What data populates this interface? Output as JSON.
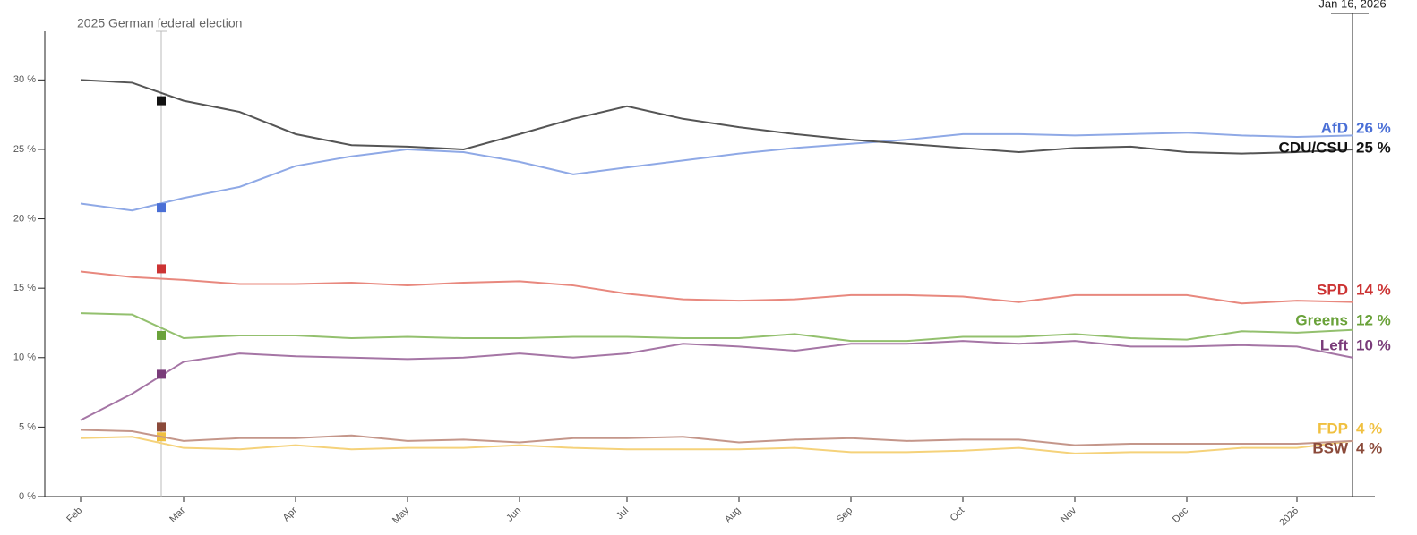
{
  "chart_data": {
    "type": "line",
    "categories": [
      "Feb",
      null,
      "Mar",
      null,
      "Apr",
      null,
      "May",
      null,
      "Jun",
      null,
      "Jul",
      null,
      "Aug",
      null,
      "Sep",
      null,
      "Oct",
      null,
      "Nov",
      null,
      "Dec",
      null,
      "2026",
      null
    ],
    "ylim": [
      0,
      33.5
    ],
    "yticks": [
      {
        "value": 0,
        "label": "0 %"
      },
      {
        "value": 5,
        "label": "5 %"
      },
      {
        "value": 10,
        "label": "10 %"
      },
      {
        "value": 15,
        "label": "15 %"
      },
      {
        "value": 20,
        "label": "20 %"
      },
      {
        "value": 25,
        "label": "25 %"
      },
      {
        "value": 30,
        "label": "30 %"
      }
    ],
    "election_label": "2025 German federal election",
    "current_date": "Jan 16, 2026",
    "series": [
      {
        "name": "AfD",
        "color": "#8fa9e6",
        "label_color": "#4a6fd6",
        "election_result": 20.8,
        "values": [
          21.1,
          20.6,
          21.5,
          22.3,
          23.8,
          24.5,
          25.0,
          24.8,
          24.1,
          23.2,
          23.7,
          24.2,
          24.7,
          25.1,
          25.4,
          25.7,
          26.1,
          26.1,
          26.0,
          26.1,
          26.2,
          26.0,
          25.9,
          26
        ],
        "value_labels": [
          null,
          null,
          null,
          null,
          null,
          null,
          null,
          null,
          null,
          null,
          null,
          null,
          null,
          null,
          null,
          null,
          null,
          null,
          null,
          null,
          null,
          null,
          null,
          "26 %"
        ]
      },
      {
        "name": "CDU/CSU",
        "color": "#555555",
        "label_color": "#111111",
        "election_result": 28.5,
        "values": [
          30.0,
          29.8,
          28.5,
          27.7,
          26.1,
          25.3,
          25.2,
          25.0,
          26.1,
          27.2,
          28.1,
          27.2,
          26.6,
          26.1,
          25.7,
          25.4,
          25.1,
          24.8,
          25.1,
          25.2,
          24.8,
          24.7,
          24.8,
          25
        ],
        "value_labels": [
          null,
          null,
          null,
          null,
          null,
          null,
          null,
          null,
          null,
          null,
          null,
          null,
          null,
          null,
          null,
          null,
          null,
          null,
          null,
          null,
          null,
          null,
          null,
          "25 %"
        ]
      },
      {
        "name": "SPD",
        "color": "#e8887e",
        "label_color": "#cc3333",
        "election_result": 16.4,
        "values": [
          16.2,
          15.8,
          15.6,
          15.3,
          15.3,
          15.4,
          15.2,
          15.4,
          15.5,
          15.2,
          14.6,
          14.2,
          14.1,
          14.2,
          14.5,
          14.5,
          14.4,
          14.0,
          14.5,
          14.5,
          14.5,
          13.9,
          14.1,
          14
        ],
        "value_labels": [
          null,
          null,
          null,
          null,
          null,
          null,
          null,
          null,
          null,
          null,
          null,
          null,
          null,
          null,
          null,
          null,
          null,
          null,
          null,
          null,
          null,
          null,
          null,
          "14 %"
        ]
      },
      {
        "name": "Greens",
        "color": "#93c06e",
        "label_color": "#6aa23a",
        "election_result": 11.6,
        "values": [
          13.2,
          13.1,
          11.4,
          11.6,
          11.6,
          11.4,
          11.5,
          11.4,
          11.4,
          11.5,
          11.5,
          11.4,
          11.4,
          11.7,
          11.2,
          11.2,
          11.5,
          11.5,
          11.7,
          11.4,
          11.3,
          11.9,
          11.8,
          12
        ],
        "value_labels": [
          null,
          null,
          null,
          null,
          null,
          null,
          null,
          null,
          null,
          null,
          null,
          null,
          null,
          null,
          null,
          null,
          null,
          null,
          null,
          null,
          null,
          null,
          null,
          "12 %"
        ]
      },
      {
        "name": "Left",
        "color": "#a575a5",
        "label_color": "#7a3c7a",
        "election_result": 8.8,
        "values": [
          5.5,
          7.4,
          9.7,
          10.3,
          10.1,
          10.0,
          9.9,
          10.0,
          10.3,
          10.0,
          10.3,
          11.0,
          10.8,
          10.5,
          11.0,
          11.0,
          11.2,
          11.0,
          11.2,
          10.8,
          10.8,
          10.9,
          10.8,
          10
        ],
        "value_labels": [
          null,
          null,
          null,
          null,
          null,
          null,
          null,
          null,
          null,
          null,
          null,
          null,
          null,
          null,
          null,
          null,
          null,
          null,
          null,
          null,
          null,
          null,
          null,
          "10 %"
        ]
      },
      {
        "name": "FDP",
        "color": "#f5d27a",
        "label_color": "#f0c040",
        "election_result": 4.3,
        "values": [
          4.2,
          4.3,
          3.5,
          3.4,
          3.7,
          3.4,
          3.5,
          3.5,
          3.7,
          3.5,
          3.4,
          3.4,
          3.4,
          3.5,
          3.2,
          3.2,
          3.3,
          3.5,
          3.1,
          3.2,
          3.2,
          3.5,
          3.5,
          4
        ],
        "value_labels": [
          null,
          null,
          null,
          null,
          null,
          null,
          null,
          null,
          null,
          null,
          null,
          null,
          null,
          null,
          null,
          null,
          null,
          null,
          null,
          null,
          null,
          null,
          null,
          "4 %"
        ]
      },
      {
        "name": "BSW",
        "color": "#c4968a",
        "label_color": "#8b4a3a",
        "election_result": 5.0,
        "values": [
          4.8,
          4.7,
          4.0,
          4.2,
          4.2,
          4.4,
          4.0,
          4.1,
          3.9,
          4.2,
          4.2,
          4.3,
          3.9,
          4.1,
          4.2,
          4.0,
          4.1,
          4.1,
          3.7,
          3.8,
          3.8,
          3.8,
          3.8,
          4
        ],
        "value_labels": [
          null,
          null,
          null,
          null,
          null,
          null,
          null,
          null,
          null,
          null,
          null,
          null,
          null,
          null,
          null,
          null,
          null,
          null,
          null,
          null,
          null,
          null,
          null,
          "4 %"
        ]
      }
    ]
  }
}
